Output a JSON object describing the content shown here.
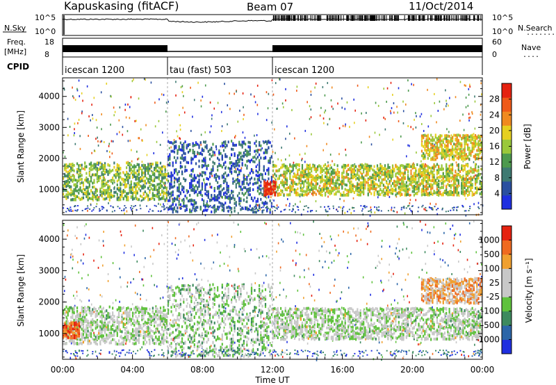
{
  "header": {
    "station": "Kapuskasing (fitACF)",
    "beam": "Beam 07",
    "date": "11/Oct/2014"
  },
  "noise_panel": {
    "left_label": "N.Sky",
    "right_label": "N.Search",
    "right_dots": ".......",
    "left_ticks": [
      "10^5",
      "10^0"
    ],
    "right_ticks": [
      "10^5",
      "10^0"
    ]
  },
  "freq_panel": {
    "left_label_1": "Freq.",
    "left_label_2": "[MHz]",
    "right_label": "Nave",
    "right_dots": "....",
    "left_ticks": [
      "18",
      "8"
    ],
    "right_ticks": [
      "60",
      "0"
    ],
    "segments": [
      {
        "start_h": 0.0,
        "end_h": 6.0,
        "level": "high"
      },
      {
        "start_h": 6.0,
        "end_h": 12.0,
        "level": "low"
      },
      {
        "start_h": 12.0,
        "end_h": 24.0,
        "level": "high"
      }
    ]
  },
  "cpid": {
    "label": "CPID",
    "segments": [
      {
        "start_h": 0.0,
        "end_h": 6.0,
        "name": "icescan 1200"
      },
      {
        "start_h": 6.0,
        "end_h": 12.0,
        "name": "tau (fast) 503"
      },
      {
        "start_h": 12.0,
        "end_h": 24.0,
        "name": "icescan 1200"
      }
    ]
  },
  "colors": {
    "power_scale": [
      "#1f2fe0",
      "#2a4fa0",
      "#3e7a72",
      "#4d9a4e",
      "#9ac83a",
      "#e6d020",
      "#f08a20",
      "#ef5a18",
      "#e52210"
    ],
    "velocity_scale": [
      "#1f2fe0",
      "#2c66a8",
      "#3d8a5e",
      "#5fc23c",
      "#c8c8c8",
      "#c8c8c8",
      "#f0a030",
      "#ef6a20",
      "#e52210"
    ]
  },
  "chart_data": [
    {
      "type": "heatmap",
      "title": "Power",
      "xlabel": "",
      "ylabel": "Slant Range [km]",
      "xlim": [
        0,
        24
      ],
      "ylim": [
        180,
        4600
      ],
      "y_ticks": [
        1000,
        2000,
        3000,
        4000
      ],
      "colorbar": {
        "label": "Power [dB]",
        "ticks": [
          "28",
          "24",
          "20",
          "16",
          "12",
          "8",
          "4"
        ],
        "range": [
          0,
          32
        ]
      },
      "regions": [
        {
          "t0": 0.0,
          "t1": 6.0,
          "r0": 700,
          "r1": 1900,
          "level": 0.45
        },
        {
          "t0": 6.0,
          "t1": 12.0,
          "r0": 300,
          "r1": 2600,
          "level": 0.2
        },
        {
          "t0": 12.0,
          "t1": 24.0,
          "r0": 850,
          "r1": 1850,
          "level": 0.55
        },
        {
          "t0": 11.5,
          "t1": 12.2,
          "r0": 850,
          "r1": 1300,
          "level": 0.95
        },
        {
          "t0": 20.5,
          "t1": 24.0,
          "r0": 2000,
          "r1": 2800,
          "level": 0.6
        }
      ]
    },
    {
      "type": "heatmap",
      "title": "Velocity",
      "xlabel": "Time UT",
      "ylabel": "Slant Range [km]",
      "xlim": [
        0,
        24
      ],
      "ylim": [
        180,
        4600
      ],
      "y_ticks": [
        1000,
        2000,
        3000,
        4000
      ],
      "x_ticks": [
        "00:00",
        "04:00",
        "08:00",
        "12:00",
        "16:00",
        "20:00",
        "00:00"
      ],
      "colorbar": {
        "label": "Velocity [m s⁻¹]",
        "ticks": [
          "1000",
          "500",
          "100",
          "25",
          "-25",
          "-100",
          "-500",
          "-1000"
        ],
        "range": [
          -1000,
          1000
        ]
      },
      "regions": [
        {
          "t0": 0.0,
          "t1": 6.0,
          "r0": 700,
          "r1": 1900,
          "level": 0.5
        },
        {
          "t0": 6.0,
          "t1": 12.0,
          "r0": 300,
          "r1": 2600,
          "level": 0.45
        },
        {
          "t0": 12.0,
          "t1": 24.0,
          "r0": 850,
          "r1": 1850,
          "level": 0.5
        },
        {
          "t0": 0.0,
          "t1": 1.0,
          "r0": 900,
          "r1": 1400,
          "level": 0.85
        },
        {
          "t0": 20.5,
          "t1": 24.0,
          "r0": 2000,
          "r1": 2800,
          "level": 0.7
        }
      ]
    }
  ]
}
